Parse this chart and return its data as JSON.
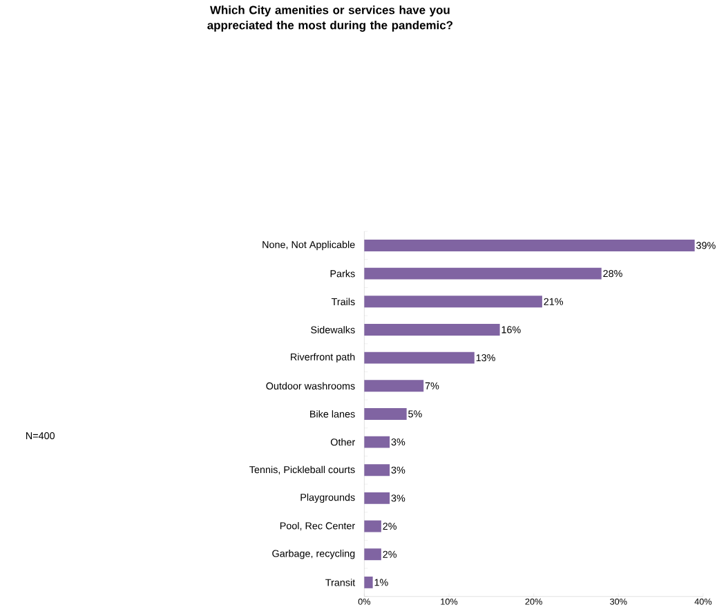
{
  "chart_data": {
    "type": "bar",
    "orientation": "horizontal",
    "title": "Which City amenities or services have you appreciated the most during the pandemic?",
    "categories": [
      "None, Not Applicable",
      "Parks",
      "Trails",
      "Sidewalks",
      "Riverfront path",
      "Outdoor washrooms",
      "Bike lanes",
      "Other",
      "Tennis, Pickleball courts",
      "Playgrounds",
      "Pool, Rec Center",
      "Garbage, recycling",
      "Transit"
    ],
    "values": [
      39,
      28,
      21,
      16,
      13,
      7,
      5,
      3,
      3,
      3,
      2,
      2,
      1
    ],
    "value_labels": [
      "39%",
      "28%",
      "21%",
      "16%",
      "13%",
      "7%",
      "5%",
      "3%",
      "3%",
      "3%",
      "2%",
      "2%",
      "1%"
    ],
    "color": "#8064a2",
    "xlim": [
      0,
      40
    ],
    "xticks": [
      {
        "value": 0,
        "label": "0%"
      },
      {
        "value": 10,
        "label": "10%"
      },
      {
        "value": 20,
        "label": "20%"
      },
      {
        "value": 30,
        "label": "30%"
      },
      {
        "value": 40,
        "label": "40%"
      }
    ],
    "annotations": [
      "N=400"
    ]
  }
}
